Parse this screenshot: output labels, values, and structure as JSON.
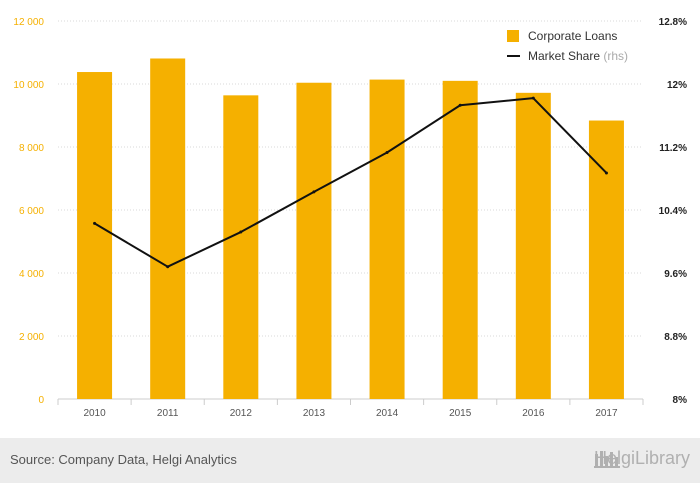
{
  "chart_data": {
    "type": "bar+line",
    "categories": [
      "2010",
      "2011",
      "2012",
      "2013",
      "2014",
      "2015",
      "2016",
      "2017"
    ],
    "series": [
      {
        "name": "Corporate Loans",
        "kind": "bar",
        "axis": "left",
        "color": "#f5b000",
        "values": [
          10380,
          10810,
          9640,
          10040,
          10140,
          10100,
          9720,
          8840
        ]
      },
      {
        "name": "Market Share",
        "kind": "line",
        "axis": "right",
        "color": "#111111",
        "values": [
          10.23,
          9.68,
          10.12,
          10.63,
          11.13,
          11.73,
          11.82,
          10.87
        ]
      }
    ],
    "left_axis": {
      "ylim": [
        0,
        12000
      ],
      "ticks": [
        0,
        2000,
        4000,
        6000,
        8000,
        10000,
        12000
      ],
      "tick_labels": [
        "0",
        "2 000",
        "4 000",
        "6 000",
        "8 000",
        "10 000",
        "12 000"
      ],
      "color": "#f5b000"
    },
    "right_axis": {
      "ylim": [
        8,
        12.8
      ],
      "ticks": [
        8,
        8.8,
        9.6,
        10.4,
        11.2,
        12,
        12.8
      ],
      "tick_labels": [
        "8%",
        "8.8%",
        "9.6%",
        "10.4%",
        "11.2%",
        "12%",
        "12.8%"
      ],
      "color": "#222222"
    },
    "legend": {
      "position": "top-right",
      "items": [
        {
          "label": "Corporate Loans",
          "suffix": "",
          "type": "bar",
          "color": "#f5b000"
        },
        {
          "label": "Market Share",
          "suffix": "(rhs)",
          "type": "line",
          "color": "#111111"
        }
      ]
    },
    "grid": "horizontal-dashed"
  },
  "footer": {
    "source": "Source: Company Data, Helgi Analytics",
    "brand": "HelgiLibrary"
  }
}
